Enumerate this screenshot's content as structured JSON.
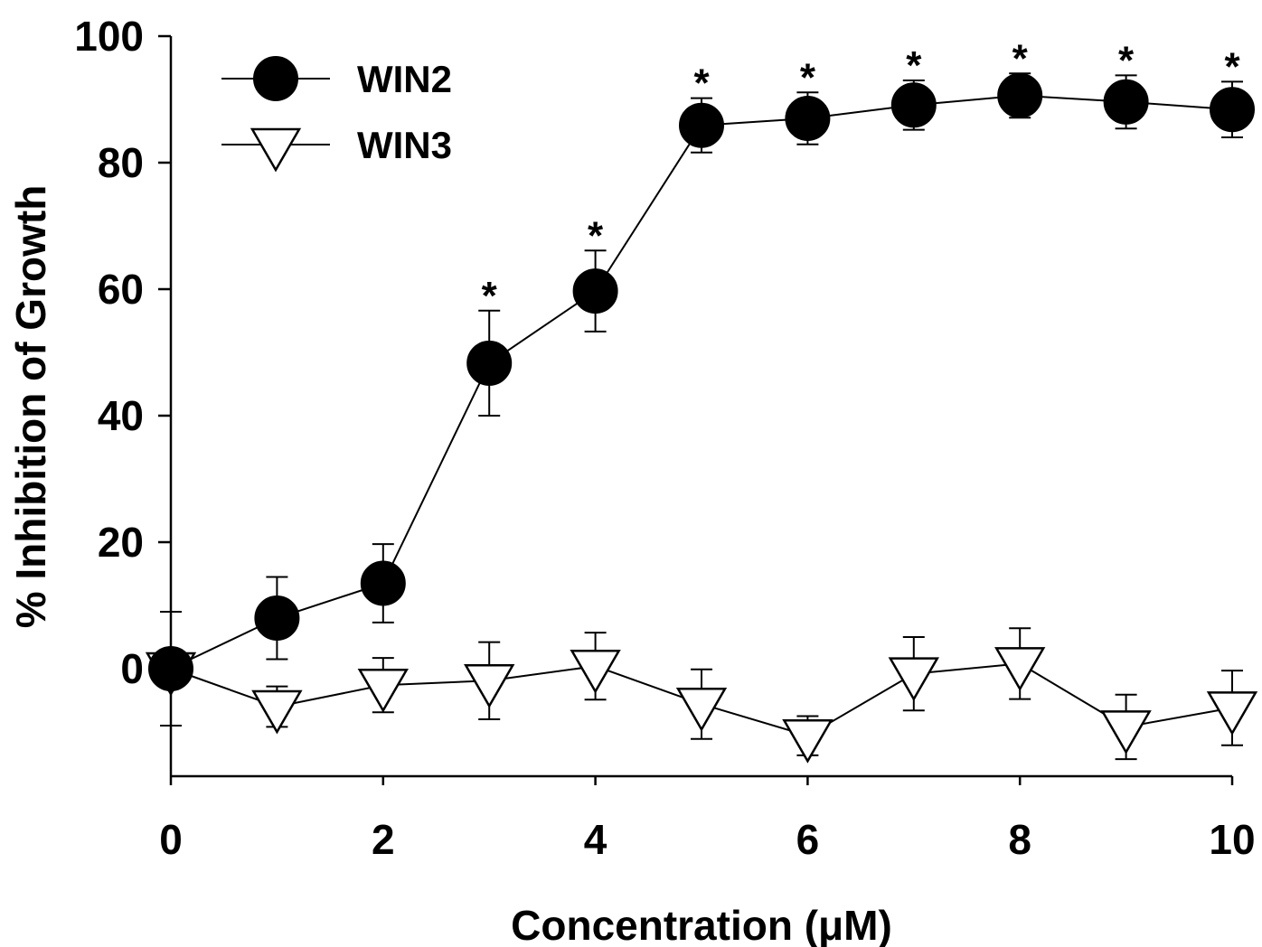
{
  "chart_data": {
    "type": "line",
    "xlabel": "Concentration (μM)",
    "ylabel": "% Inhibition of Growth",
    "xlim": [
      0,
      10
    ],
    "ylim": [
      -17,
      100
    ],
    "x_ticks": [
      0,
      2,
      4,
      6,
      8,
      10
    ],
    "y_ticks": [
      0,
      20,
      40,
      60,
      80,
      100
    ],
    "x_tick_labels": [
      "0",
      "2",
      "4",
      "6",
      "8",
      "10"
    ],
    "y_tick_labels": [
      "0",
      "20",
      "40",
      "60",
      "80",
      "100"
    ],
    "grid": false,
    "legend_position": "top-left",
    "x": [
      0,
      1,
      2,
      3,
      4,
      5,
      6,
      7,
      8,
      9,
      10
    ],
    "series": [
      {
        "name": "WIN2",
        "marker": "filled-circle",
        "color": "#000000",
        "values": [
          0,
          8,
          13.5,
          48.3,
          59.7,
          85.9,
          87,
          89.1,
          90.6,
          89.6,
          88.4
        ],
        "errors": [
          9,
          6.5,
          6.2,
          8.3,
          6.4,
          4.3,
          4.1,
          3.9,
          3.5,
          4.2,
          4.4
        ],
        "significance": [
          "",
          "",
          "",
          "*",
          "*",
          "*",
          "*",
          "*",
          "*",
          "*",
          "*"
        ]
      },
      {
        "name": "WIN3",
        "marker": "open-triangle-down",
        "color": "#ffffff",
        "values": [
          0,
          -6,
          -2.6,
          -1.9,
          0.4,
          -5.6,
          -10.6,
          -0.8,
          0.8,
          -9.2,
          -6.2
        ],
        "errors": [
          9,
          3.2,
          4.3,
          6.1,
          5.3,
          5.5,
          3.1,
          5.8,
          5.6,
          5.1,
          5.9
        ],
        "significance": [
          "",
          "",
          "",
          "",
          "",
          "",
          "",
          "",
          "",
          "",
          ""
        ]
      }
    ]
  }
}
